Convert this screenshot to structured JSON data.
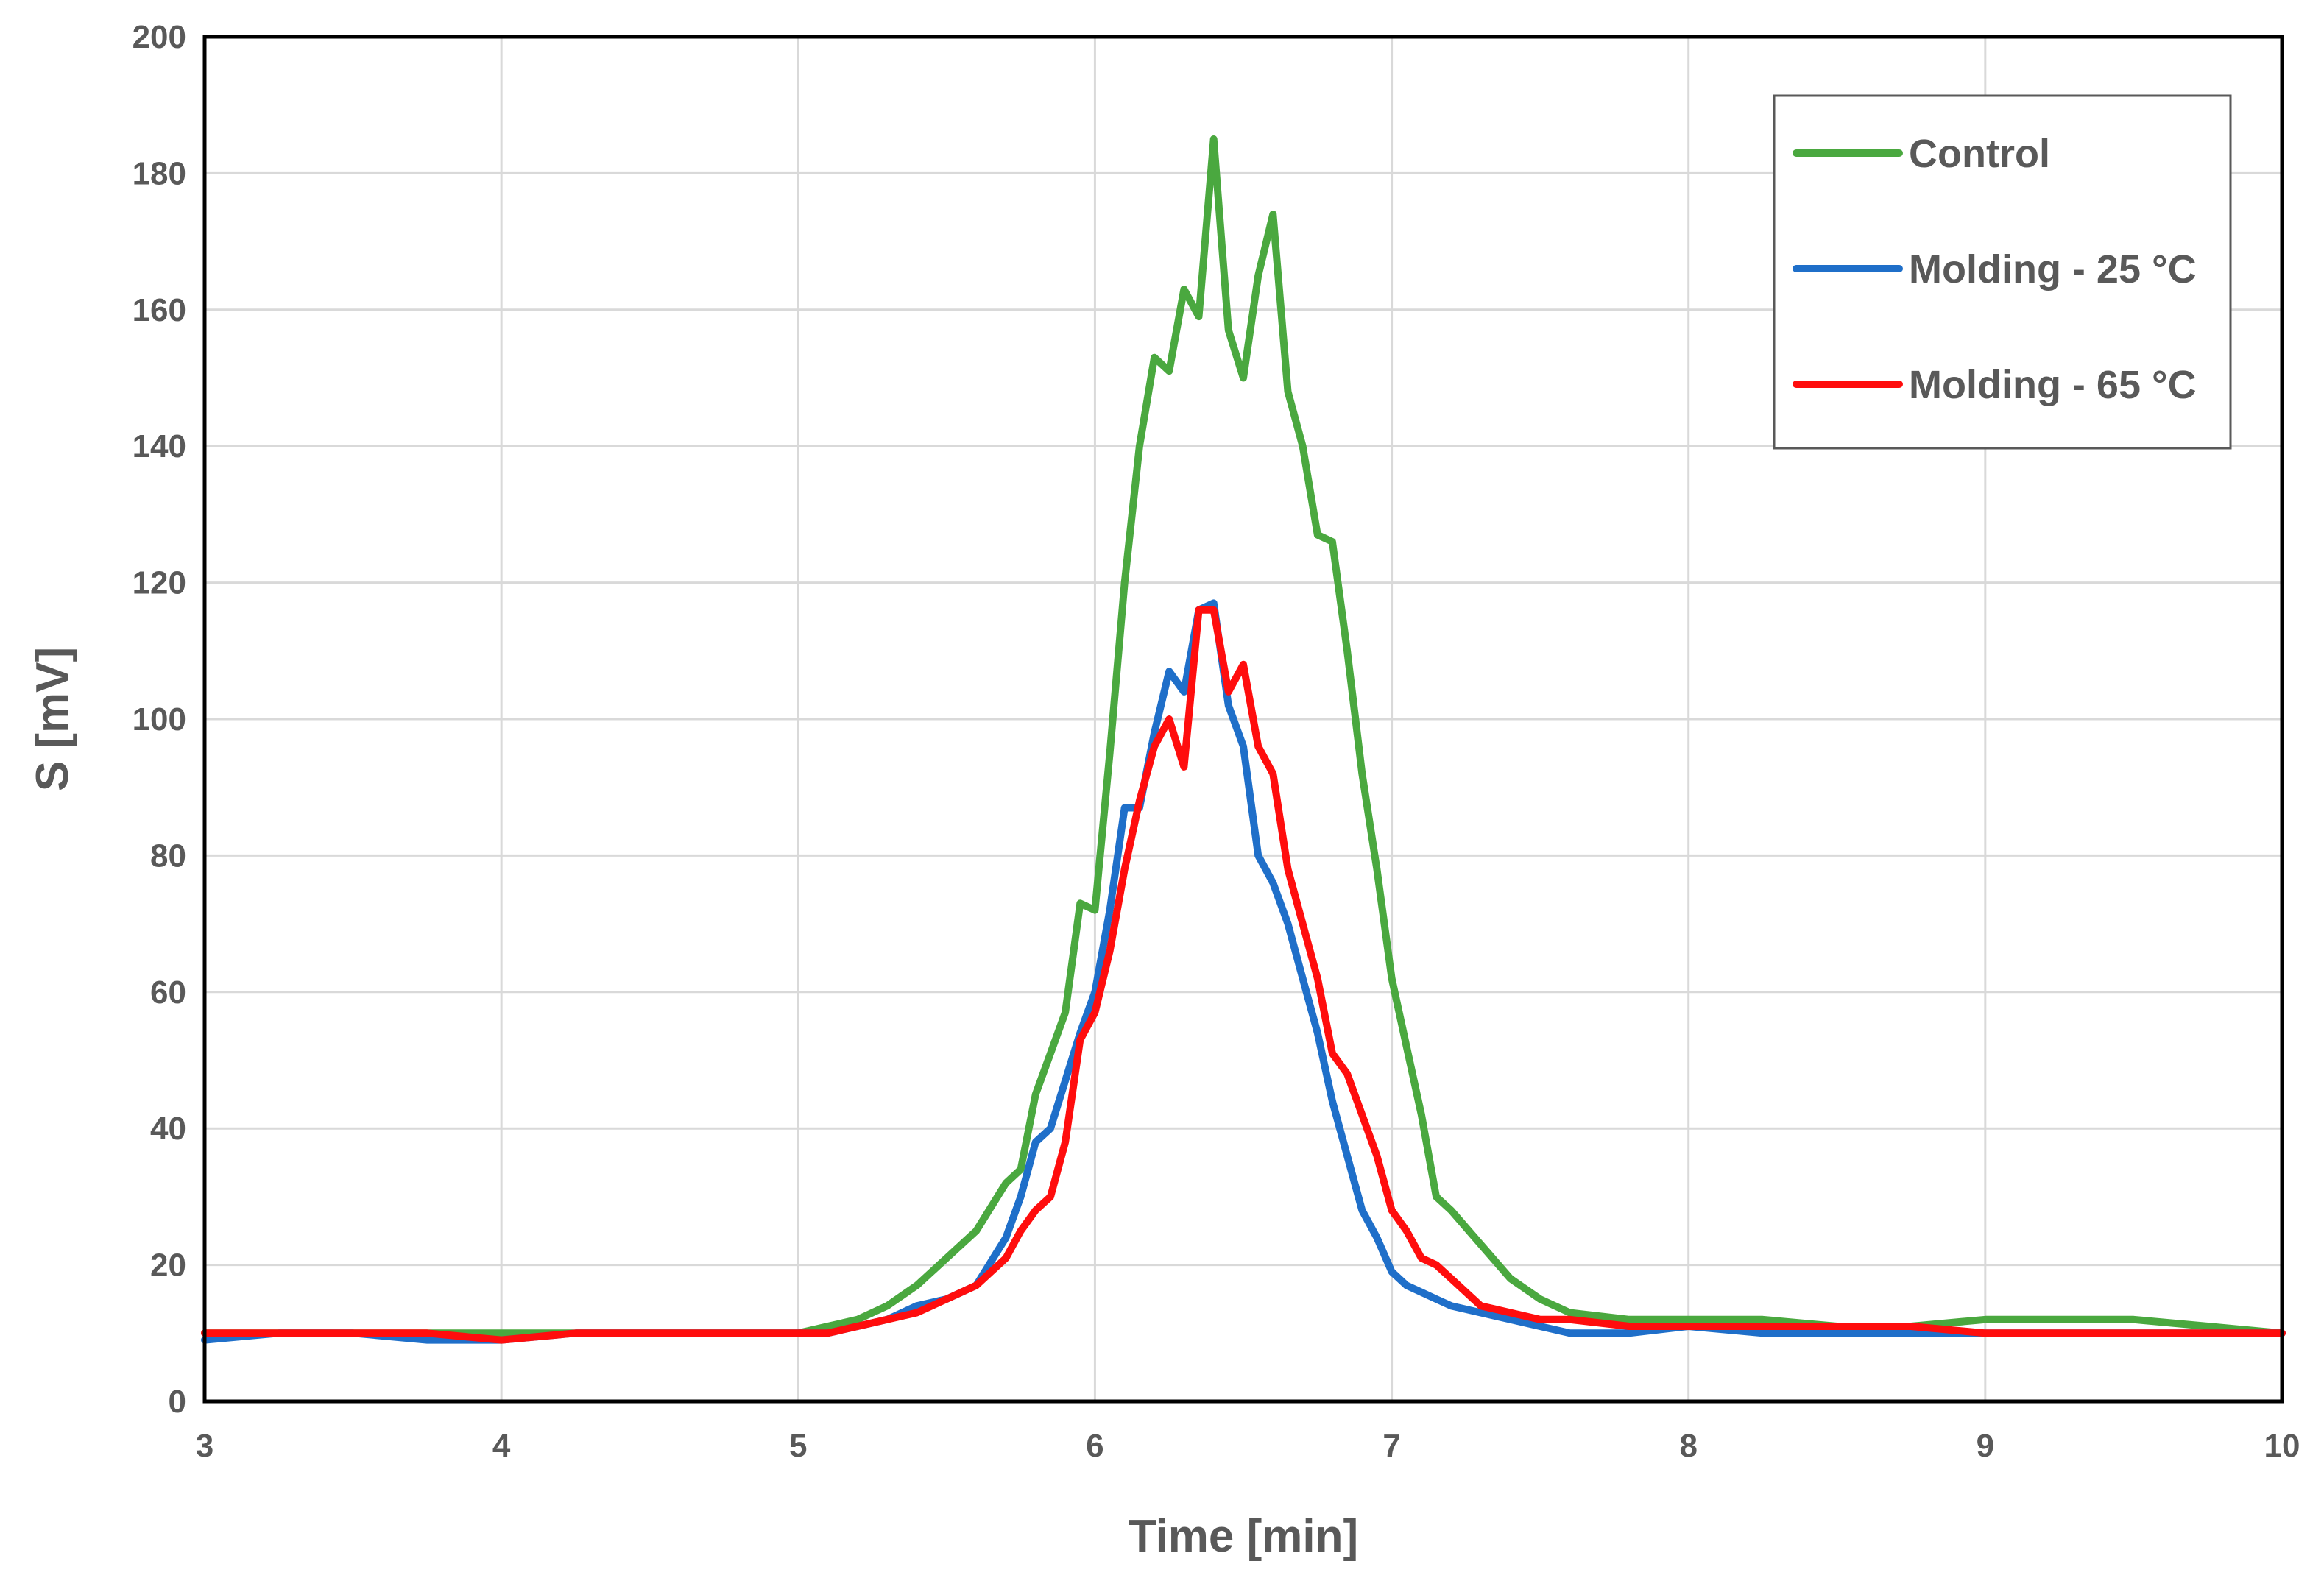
{
  "chart_data": {
    "type": "line",
    "title": "",
    "xlabel": "Time [min]",
    "ylabel": "S [mV]",
    "xlim": [
      3,
      10
    ],
    "ylim": [
      0,
      200
    ],
    "xticks": [
      "3",
      "4",
      "5",
      "6",
      "7",
      "8",
      "9",
      "10"
    ],
    "yticks": [
      "0",
      "20",
      "40",
      "60",
      "80",
      "100",
      "120",
      "140",
      "160",
      "180",
      "200"
    ],
    "grid": true,
    "legend_position": "top-right",
    "x": [
      3.0,
      3.25,
      3.5,
      3.75,
      4.0,
      4.25,
      4.5,
      4.75,
      5.0,
      5.1,
      5.2,
      5.3,
      5.4,
      5.5,
      5.6,
      5.7,
      5.75,
      5.8,
      5.85,
      5.9,
      5.95,
      6.0,
      6.05,
      6.1,
      6.15,
      6.2,
      6.25,
      6.3,
      6.35,
      6.4,
      6.45,
      6.5,
      6.55,
      6.6,
      6.65,
      6.7,
      6.75,
      6.8,
      6.85,
      6.9,
      6.95,
      7.0,
      7.05,
      7.1,
      7.15,
      7.2,
      7.3,
      7.4,
      7.5,
      7.6,
      7.8,
      8.0,
      8.25,
      8.5,
      8.75,
      9.0,
      9.25,
      9.5,
      9.75,
      10.0
    ],
    "series": [
      {
        "name": "Control",
        "color": "#4aa83f",
        "values": [
          10,
          10,
          10,
          10,
          10,
          10,
          10,
          10,
          10,
          11,
          12,
          14,
          17,
          21,
          25,
          32,
          34,
          45,
          51,
          57,
          73,
          72,
          95,
          120,
          140,
          153,
          151,
          163,
          159,
          185,
          157,
          150,
          165,
          174,
          148,
          140,
          127,
          126,
          110,
          92,
          78,
          62,
          52,
          42,
          30,
          28,
          23,
          18,
          15,
          13,
          12,
          12,
          12,
          11,
          11,
          12,
          12,
          12,
          11,
          10
        ]
      },
      {
        "name": "Molding - 25 °C",
        "color": "#1f6fc9",
        "values": [
          9,
          10,
          10,
          9,
          9,
          10,
          10,
          10,
          10,
          10,
          11,
          12,
          14,
          15,
          17,
          24,
          30,
          38,
          40,
          47,
          54,
          60,
          72,
          87,
          87,
          98,
          107,
          104,
          116,
          117,
          102,
          96,
          80,
          76,
          70,
          62,
          54,
          44,
          36,
          28,
          24,
          19,
          17,
          16,
          15,
          14,
          13,
          12,
          11,
          10,
          10,
          11,
          10,
          10,
          10,
          10,
          10,
          10,
          10,
          10
        ]
      },
      {
        "name": "Molding - 65 °C",
        "color": "#ff0d0d",
        "values": [
          10,
          10,
          10,
          10,
          9,
          10,
          10,
          10,
          10,
          10,
          11,
          12,
          13,
          15,
          17,
          21,
          25,
          28,
          30,
          38,
          53,
          57,
          66,
          78,
          88,
          96,
          100,
          93,
          116,
          116,
          104,
          108,
          96,
          92,
          78,
          70,
          62,
          51,
          48,
          42,
          36,
          28,
          25,
          21,
          20,
          18,
          14,
          13,
          12,
          12,
          11,
          11,
          11,
          11,
          11,
          10,
          10,
          10,
          10,
          10
        ]
      }
    ]
  }
}
